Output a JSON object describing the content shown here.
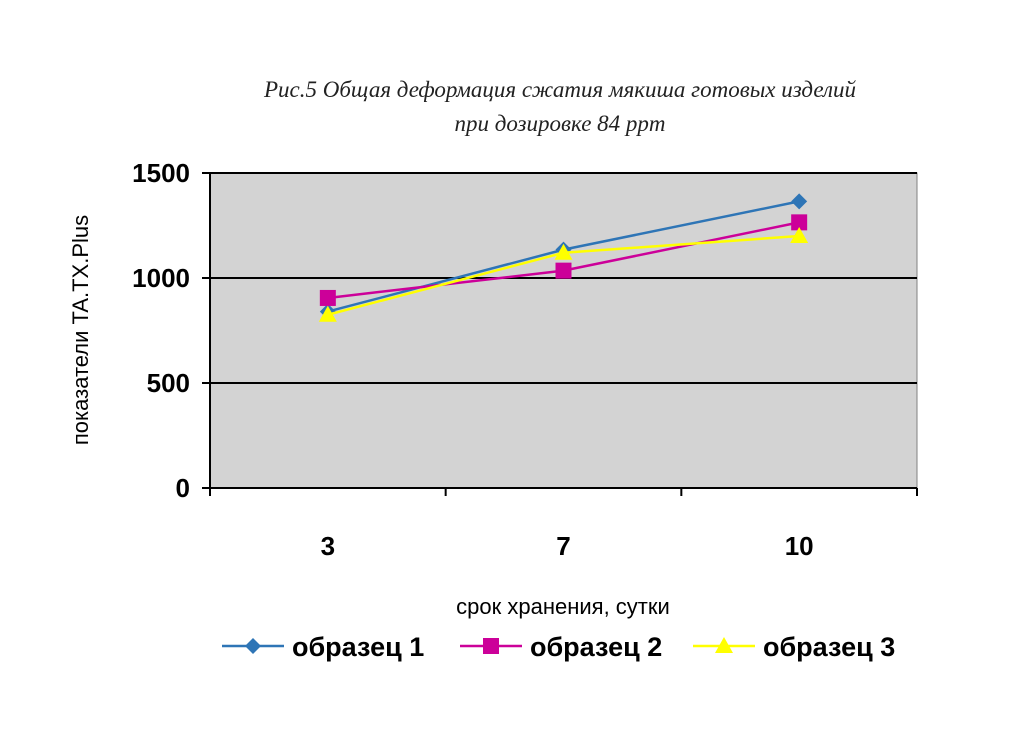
{
  "chart_data": {
    "type": "line",
    "title_line1": "Рис.5 Общая деформация сжатия мякиша готовых изделий",
    "title_line2": "при дозировке 84 ppm",
    "xlabel": "срок хранения, сутки",
    "ylabel": "показатели TA.TX.Plus",
    "categories": [
      "3",
      "7",
      "10"
    ],
    "y_ticks": [
      "0",
      "500",
      "1000",
      "1500"
    ],
    "ylim": [
      0,
      1500
    ],
    "grid": true,
    "legend_position": "bottom",
    "series": [
      {
        "name": "образец 1",
        "values": [
          840,
          1135,
          1365
        ],
        "color": "#2e75b6",
        "marker": "diamond"
      },
      {
        "name": "образец 2",
        "values": [
          905,
          1035,
          1265
        ],
        "color": "#cc0099",
        "marker": "square"
      },
      {
        "name": "образец 3",
        "values": [
          825,
          1120,
          1200
        ],
        "color": "#ffff00",
        "marker": "triangle"
      }
    ],
    "plot_background": "#d3d3d3"
  }
}
